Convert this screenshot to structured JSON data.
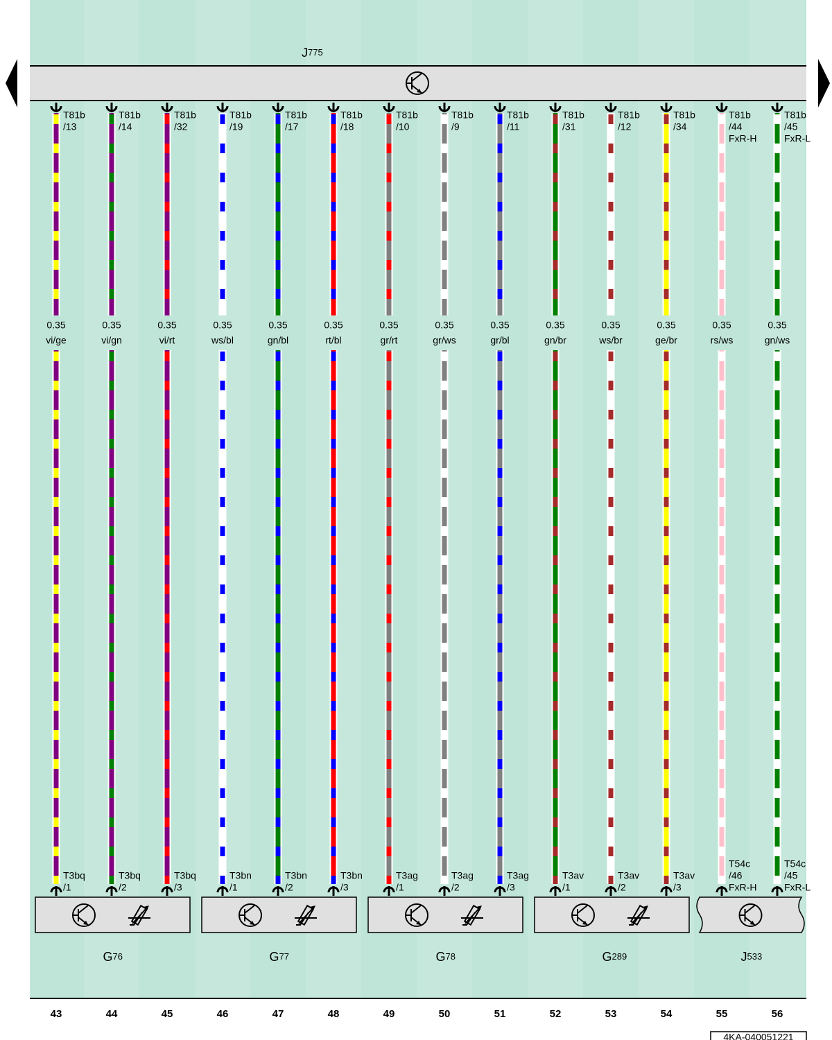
{
  "top_component": {
    "name": "J",
    "index": "775"
  },
  "wires": [
    {
      "column": "43",
      "top_pin": [
        "T81b",
        "/13"
      ],
      "gauge": "0.35",
      "code": "vi/ge",
      "colors": [
        "#800080",
        "#ffff00"
      ],
      "bottom_pin": [
        "T3bq",
        "/1"
      ]
    },
    {
      "column": "44",
      "top_pin": [
        "T81b",
        "/14"
      ],
      "gauge": "0.35",
      "code": "vi/gn",
      "colors": [
        "#800080",
        "#008000"
      ],
      "bottom_pin": [
        "T3bq",
        "/2"
      ]
    },
    {
      "column": "45",
      "top_pin": [
        "T81b",
        "/32"
      ],
      "gauge": "0.35",
      "code": "vi/rt",
      "colors": [
        "#800080",
        "#ff0000"
      ],
      "bottom_pin": [
        "T3bq",
        "/3"
      ]
    },
    {
      "column": "46",
      "top_pin": [
        "T81b",
        "/19"
      ],
      "gauge": "0.35",
      "code": "ws/bl",
      "colors": [
        "#ffffff",
        "#0000ff"
      ],
      "bottom_pin": [
        "T3bn",
        "/1"
      ]
    },
    {
      "column": "47",
      "top_pin": [
        "T81b",
        "/17"
      ],
      "gauge": "0.35",
      "code": "gn/bl",
      "colors": [
        "#008000",
        "#0000ff"
      ],
      "bottom_pin": [
        "T3bn",
        "/2"
      ]
    },
    {
      "column": "48",
      "top_pin": [
        "T81b",
        "/18"
      ],
      "gauge": "0.35",
      "code": "rt/bl",
      "colors": [
        "#ff0000",
        "#0000ff"
      ],
      "bottom_pin": [
        "T3bn",
        "/3"
      ]
    },
    {
      "column": "49",
      "top_pin": [
        "T81b",
        "/10"
      ],
      "gauge": "0.35",
      "code": "gr/rt",
      "colors": [
        "#808080",
        "#ff0000"
      ],
      "bottom_pin": [
        "T3ag",
        "/1"
      ]
    },
    {
      "column": "50",
      "top_pin": [
        "T81b",
        "/9"
      ],
      "gauge": "0.35",
      "code": "gr/ws",
      "colors": [
        "#808080",
        "#ffffff"
      ],
      "bottom_pin": [
        "T3ag",
        "/2"
      ]
    },
    {
      "column": "51",
      "top_pin": [
        "T81b",
        "/11"
      ],
      "gauge": "0.35",
      "code": "gr/bl",
      "colors": [
        "#808080",
        "#0000ff"
      ],
      "bottom_pin": [
        "T3ag",
        "/3"
      ]
    },
    {
      "column": "52",
      "top_pin": [
        "T81b",
        "/31"
      ],
      "gauge": "0.35",
      "code": "gn/br",
      "colors": [
        "#008000",
        "#a52a2a"
      ],
      "bottom_pin": [
        "T3av",
        "/1"
      ]
    },
    {
      "column": "53",
      "top_pin": [
        "T81b",
        "/12"
      ],
      "gauge": "0.35",
      "code": "ws/br",
      "colors": [
        "#ffffff",
        "#a52a2a"
      ],
      "bottom_pin": [
        "T3av",
        "/2"
      ]
    },
    {
      "column": "54",
      "top_pin": [
        "T81b",
        "/34"
      ],
      "gauge": "0.35",
      "code": "ge/br",
      "colors": [
        "#ffff00",
        "#a52a2a"
      ],
      "bottom_pin": [
        "T3av",
        "/3"
      ]
    },
    {
      "column": "55",
      "top_pin": [
        "T81b",
        "/44",
        "FxR-H"
      ],
      "gauge": "0.35",
      "code": "rs/ws",
      "colors": [
        "#ffc0cb",
        "#ffffff"
      ],
      "bottom_pin": [
        "T54c",
        "/46",
        "FxR-H"
      ]
    },
    {
      "column": "56",
      "top_pin": [
        "T81b",
        "/45",
        "FxR-L"
      ],
      "gauge": "0.35",
      "code": "gn/ws",
      "colors": [
        "#008000",
        "#ffffff"
      ],
      "bottom_pin": [
        "T54c",
        "/45",
        "FxR-L"
      ]
    }
  ],
  "components": [
    {
      "name": "G",
      "index": "76"
    },
    {
      "name": "G",
      "index": "77"
    },
    {
      "name": "G",
      "index": "78"
    },
    {
      "name": "G",
      "index": "289"
    },
    {
      "name": "J",
      "index": "533"
    }
  ],
  "footer": {
    "code": "4KA-040051221"
  }
}
